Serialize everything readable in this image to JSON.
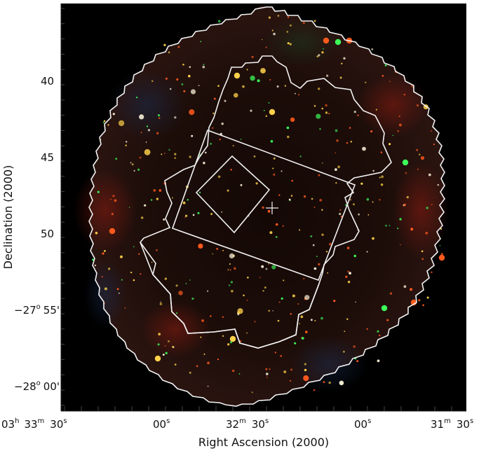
{
  "figure": {
    "y_axis_title": "Declination (2000)",
    "x_axis_title": "Right Ascension (2000)",
    "y_ticks": {
      "t40": "40",
      "t45": "45",
      "t50": "50",
      "t55_deg": "−27",
      "t55_deg_sup": "o",
      "t55_min": "55'",
      "t00_deg": "−28",
      "t00_deg_sup": "o",
      "t00_min": "00'"
    },
    "x_ticks": {
      "t1_h": "03",
      "t1_h_sup": "h",
      "t1_m": "33",
      "t1_m_sup": "m",
      "t1_s": "30",
      "t1_s_sup": "s",
      "t2_s": "00",
      "t2_s_sup": "s",
      "t3_m": "32",
      "t3_m_sup": "m",
      "t3_s": "30",
      "t3_s_sup": "s",
      "t4_s": "00",
      "t4_s_sup": "s",
      "t5_m": "31",
      "t5_m_sup": "m",
      "t5_s": "30",
      "t5_s_sup": "s"
    },
    "colors": {
      "sky_background": "#000000",
      "mosaic_fill": "#1a0b08",
      "outline": "#f2f2f2",
      "source_red": "#ff5a1e",
      "source_yellow": "#ffd24a",
      "source_green": "#3cff5a",
      "source_white": "#fff6dc"
    }
  }
}
